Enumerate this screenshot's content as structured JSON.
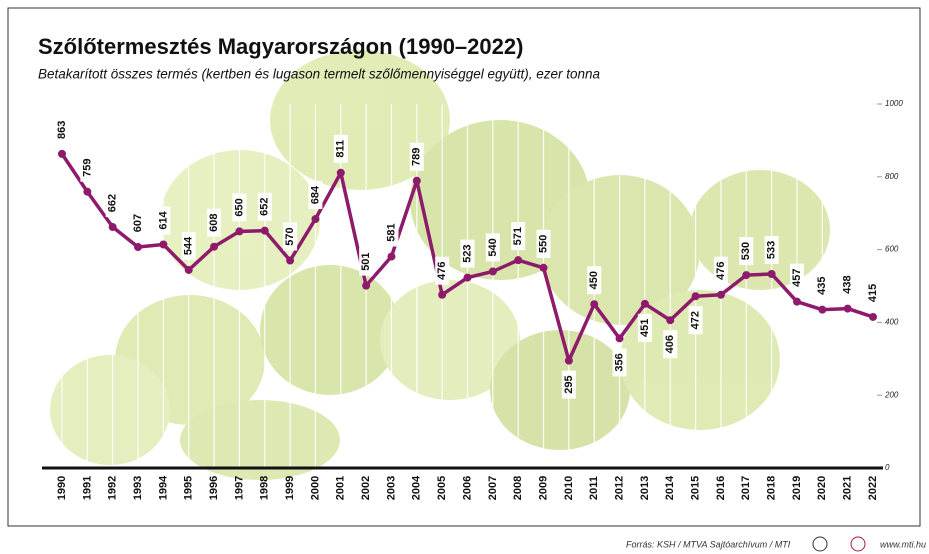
{
  "chart_data": {
    "type": "line",
    "title": "Szőlőtermesztés Magyarországon (1990–2022)",
    "subtitle": "Betakarított összes termés (kertben és lugason termelt szőlőmennyiséggel együtt), ezer tonna",
    "categories": [
      "1990",
      "1991",
      "1992",
      "1993",
      "1994",
      "1995",
      "1996",
      "1997",
      "1998",
      "1999",
      "2000",
      "2001",
      "2002",
      "2003",
      "2004",
      "2005",
      "2006",
      "2007",
      "2008",
      "2009",
      "2010",
      "2011",
      "2012",
      "2013",
      "2014",
      "2015",
      "2016",
      "2017",
      "2018",
      "2019",
      "2020",
      "2021",
      "2022"
    ],
    "values": [
      863,
      759,
      662,
      607,
      614,
      544,
      608,
      650,
      652,
      570,
      684,
      811,
      501,
      581,
      789,
      476,
      523,
      540,
      571,
      550,
      295,
      450,
      356,
      451,
      406,
      472,
      476,
      530,
      533,
      457,
      435,
      438,
      415
    ],
    "color": "#8e1a6b",
    "ylim": [
      0,
      1000
    ],
    "yticks": [
      0,
      200,
      400,
      600,
      800,
      1000
    ],
    "grid": true,
    "source": "Forrás: KSH / MTVA Sajtóarchívum / MTI",
    "website": "www.mti.hu"
  }
}
